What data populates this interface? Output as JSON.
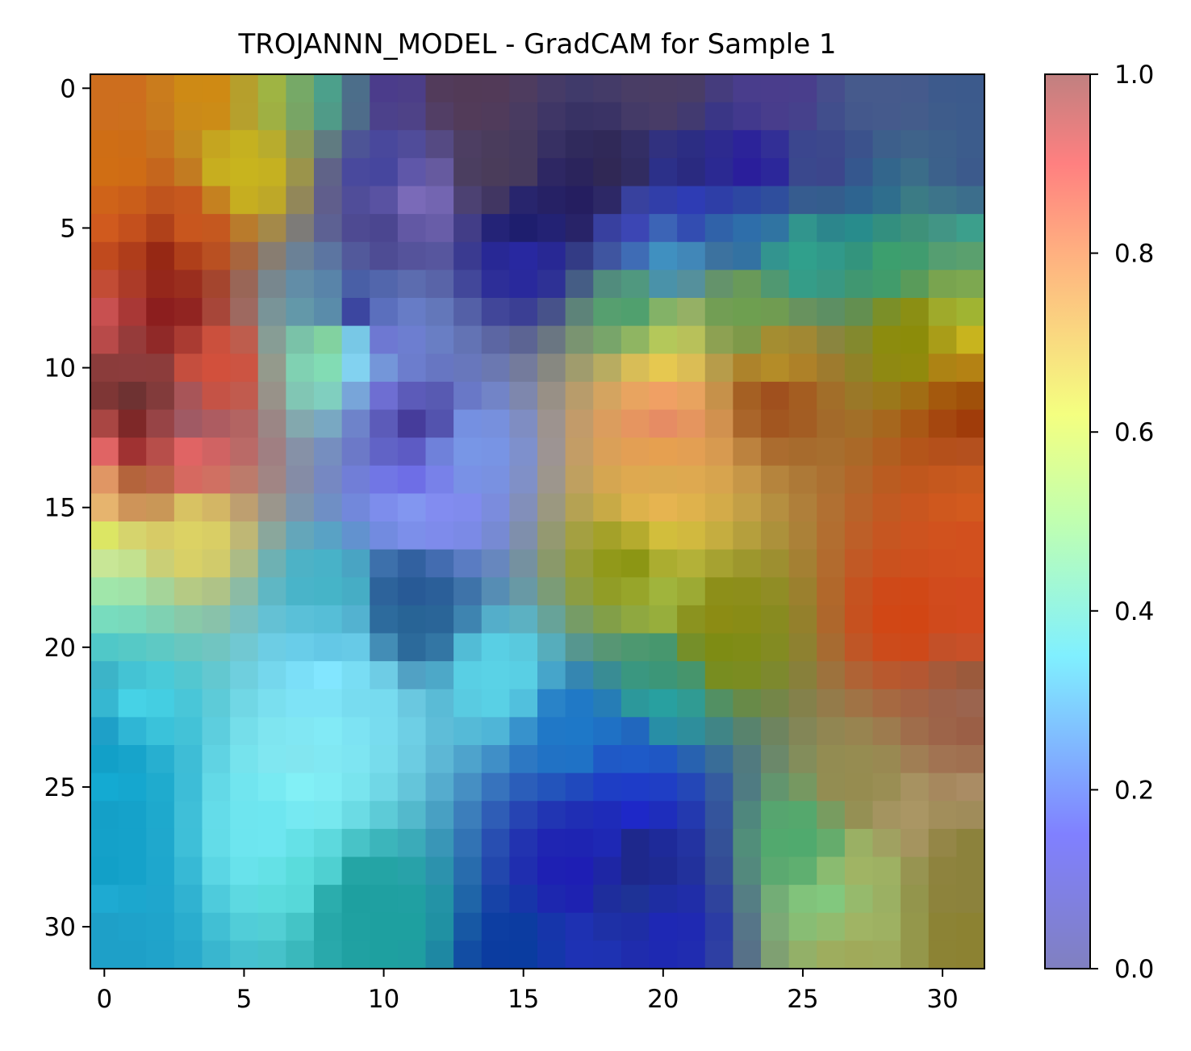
{
  "chart_data": {
    "type": "heatmap",
    "title": "TROJANNN_MODEL - GradCAM for Sample 1",
    "xlabel": "",
    "ylabel": "",
    "x_ticks": [
      "0",
      "5",
      "10",
      "15",
      "20",
      "25",
      "30"
    ],
    "y_ticks": [
      "0",
      "5",
      "10",
      "15",
      "20",
      "25",
      "30"
    ],
    "grid": false,
    "colorbar": {
      "ticks": [
        "0.0",
        "0.2",
        "0.4",
        "0.6",
        "0.8",
        "1.0"
      ],
      "range": [
        0.0,
        1.0
      ]
    },
    "rows": 32,
    "cols": 32
  }
}
